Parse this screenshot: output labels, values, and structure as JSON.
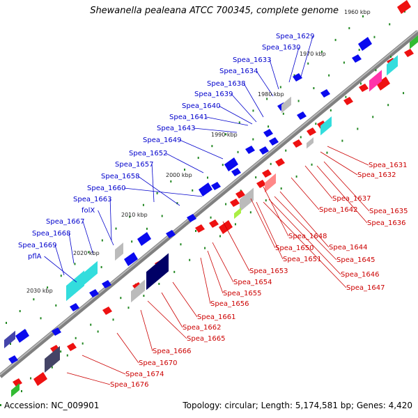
{
  "title": "Shewanella pealeana ATCC 700345, complete genome",
  "footer": {
    "accession": "Accession: NC_009901",
    "summary": "Topology: circular; Length: 5,174,581 bp; Genes: 4,420"
  },
  "colors": {
    "forward_label": "#0000cc",
    "reverse_label": "#cc0000",
    "backbone": "#808080"
  },
  "scale_ticks": [
    "1960 kbp",
    "1970 kbp",
    "1980 kbp",
    "1990 kbp",
    "2000 kbp",
    "2010 kbp",
    "2020 kbp",
    "2030 kbp"
  ],
  "forward_labels": [
    "Spea_1629",
    "Spea_1630",
    "Spea_1633",
    "Spea_1634",
    "Spea_1638",
    "Spea_1639",
    "Spea_1640",
    "Spea_1641",
    "Spea_1643",
    "Spea_1649",
    "Spea_1652",
    "Spea_1657",
    "Spea_1658",
    "Spea_1660",
    "Spea_1663",
    "folX",
    "Spea_1667",
    "Spea_1668",
    "Spea_1669",
    "pflA"
  ],
  "reverse_labels": [
    "Spea_1631",
    "Spea_1632",
    "Spea_1637",
    "Spea_1635",
    "Spea_1636",
    "Spea_1642",
    "Spea_1648",
    "Spea_1644",
    "Spea_1650",
    "Spea_1645",
    "Spea_1651",
    "Spea_1646",
    "Spea_1653",
    "Spea_1647",
    "Spea_1654",
    "Spea_1655",
    "Spea_1656",
    "Spea_1661",
    "Spea_1662",
    "Spea_1665",
    "Spea_1666",
    "Spea_1670",
    "Spea_1674",
    "Spea_1676"
  ]
}
